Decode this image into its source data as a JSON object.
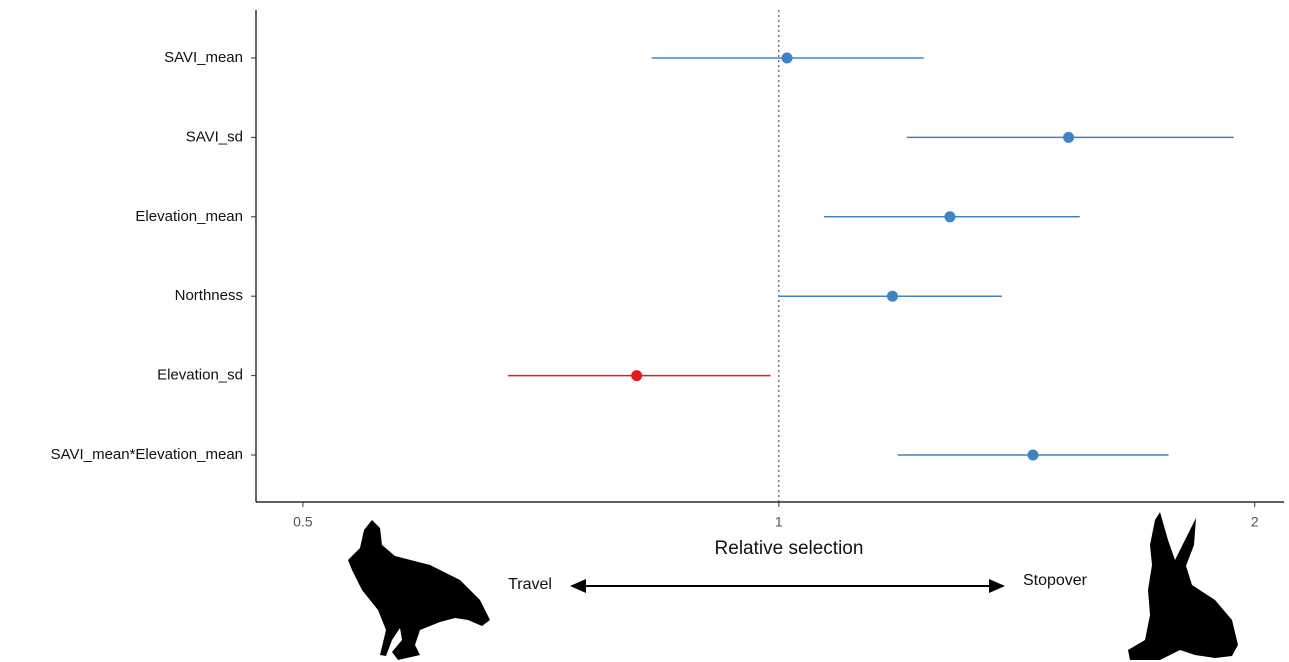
{
  "chart_data": {
    "type": "forest",
    "xlabel": "Relative selection",
    "categories": [
      "SAVI_mean",
      "SAVI_sd",
      "Elevation_mean",
      "Northness",
      "Elevation_sd",
      "SAVI_mean*Elevation_mean"
    ],
    "values": [
      1.012,
      1.525,
      1.283,
      1.18,
      0.813,
      1.448
    ],
    "lower": [
      0.831,
      1.205,
      1.068,
      1.0,
      0.674,
      1.189
    ],
    "upper": [
      1.235,
      1.94,
      1.55,
      1.384,
      0.988,
      1.764
    ],
    "colors": [
      "#3f83c4",
      "#3f83c4",
      "#3f83c4",
      "#3f83c4",
      "#e41a1c",
      "#3f83c4"
    ],
    "xscale": "log",
    "xlim": [
      0.467,
      2.087
    ],
    "xticks": [
      0.5,
      1,
      2
    ],
    "refline": 1,
    "annotations": {
      "left": "Travel",
      "right": "Stopover"
    }
  }
}
